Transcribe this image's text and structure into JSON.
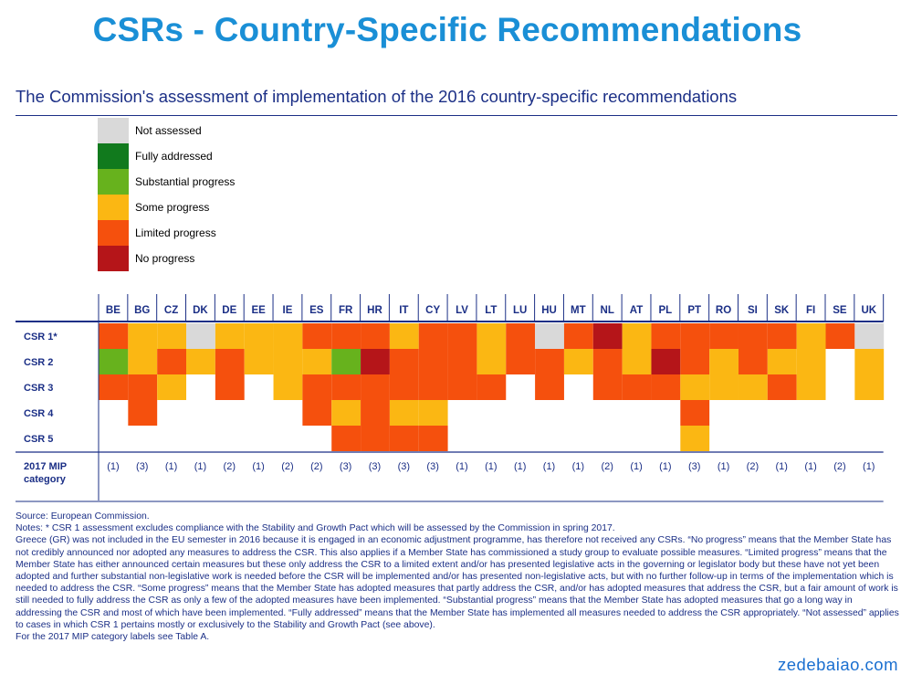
{
  "header": {
    "title": "CSRs - Country-Specific Recommendations",
    "subtitle": "The Commission's assessment of implementation of the 2016 country-specific recommendations"
  },
  "legend": [
    {
      "key": "na",
      "label": "Not assessed",
      "color": "#d9d9d9"
    },
    {
      "key": "fa",
      "label": "Fully addressed",
      "color": "#117a1d"
    },
    {
      "key": "sp",
      "label": "Substantial progress",
      "color": "#67b21d"
    },
    {
      "key": "so",
      "label": "Some progress",
      "color": "#fbb713"
    },
    {
      "key": "li",
      "label": "Limited progress",
      "color": "#f5500d"
    },
    {
      "key": "np",
      "label": "No progress",
      "color": "#b51519"
    }
  ],
  "chart_data": {
    "type": "heatmap",
    "title": "The Commission's assessment of implementation of the 2016 country-specific recommendations",
    "columns": [
      "BE",
      "BG",
      "CZ",
      "DK",
      "DE",
      "EE",
      "IE",
      "ES",
      "FR",
      "HR",
      "IT",
      "CY",
      "LV",
      "LT",
      "LU",
      "HU",
      "MT",
      "NL",
      "AT",
      "PL",
      "PT",
      "RO",
      "SI",
      "SK",
      "FI",
      "SE",
      "UK"
    ],
    "rows": [
      "CSR 1*",
      "CSR 2",
      "CSR 3",
      "CSR 4",
      "CSR 5"
    ],
    "categories": {
      "na": "Not assessed",
      "fa": "Fully addressed",
      "sp": "Substantial progress",
      "so": "Some progress",
      "li": "Limited progress",
      "np": "No progress"
    },
    "values": [
      [
        "li",
        "so",
        "so",
        "na",
        "so",
        "so",
        "so",
        "li",
        "li",
        "li",
        "so",
        "li",
        "li",
        "so",
        "li",
        "na",
        "li",
        "np",
        "so",
        "li",
        "li",
        "li",
        "li",
        "li",
        "so",
        "li",
        "na"
      ],
      [
        "sp",
        "so",
        "li",
        "so",
        "li",
        "so",
        "so",
        "so",
        "sp",
        "np",
        "li",
        "li",
        "li",
        "so",
        "li",
        "li",
        "so",
        "li",
        "so",
        "np",
        "li",
        "so",
        "li",
        "so",
        "so",
        "",
        "so"
      ],
      [
        "li",
        "li",
        "so",
        "",
        "li",
        "",
        "so",
        "li",
        "li",
        "li",
        "li",
        "li",
        "li",
        "li",
        "",
        "li",
        "",
        "li",
        "li",
        "li",
        "so",
        "so",
        "so",
        "li",
        "so",
        "",
        "so"
      ],
      [
        "",
        "li",
        "",
        "",
        "",
        "",
        "",
        "li",
        "so",
        "li",
        "so",
        "so",
        "",
        "",
        "",
        "",
        "",
        "",
        "",
        "",
        "li",
        "",
        "",
        "",
        "",
        "",
        ""
      ],
      [
        "",
        "",
        "",
        "",
        "",
        "",
        "",
        "",
        "li",
        "li",
        "li",
        "li",
        "",
        "",
        "",
        "",
        "",
        "",
        "",
        "",
        "so",
        "",
        "",
        "",
        "",
        "",
        ""
      ]
    ],
    "footer_label_line1": "2017 MIP",
    "footer_label_line2": "category",
    "mip_category": [
      "(1)",
      "(3)",
      "(1)",
      "(1)",
      "(2)",
      "(1)",
      "(2)",
      "(2)",
      "(3)",
      "(3)",
      "(3)",
      "(3)",
      "(1)",
      "(1)",
      "(1)",
      "(1)",
      "(1)",
      "(2)",
      "(1)",
      "(1)",
      "(3)",
      "(1)",
      "(2)",
      "(1)",
      "(1)",
      "(2)",
      "(1)"
    ]
  },
  "notes": {
    "source": "Source: European Commission.",
    "notes_line": "Notes: * CSR 1 assessment excludes compliance with the Stability and Growth Pact which will be assessed by the Commission in spring 2017.",
    "body": "Greece (GR) was not included in the EU semester in 2016 because it is engaged in an economic adjustment programme, has therefore not received any CSRs. “No progress” means that the Member State has not credibly announced nor adopted any measures to address the CSR. This also applies if a Member State has commissioned a study group to evaluate possible measures. “Limited progress” means that the Member State has either announced certain measures but these only address the CSR to a limited extent and/or has presented legislative acts in the governing or legislator body but these have not yet been adopted and further substantial non-legislative work is needed before the CSR will be implemented and/or has presented non-legislative acts, but with no further follow-up in terms of the implementation which is needed to address the CSR. “Some progress” means that the Member State has adopted measures that partly address the CSR, and/or has adopted measures that address the CSR, but a fair amount of work is still needed to fully address the CSR as only a few of the adopted measures have been implemented. “Substantial progress” means that the Member State has adopted measures that go a long way in addressing the CSR and most of which have been implemented. “Fully addressed” means that the Member State has implemented all measures needed to address the CSR appropriately. “Not assessed” applies to cases in which CSR 1 pertains mostly or exclusively to the Stability and Growth Pact (see above).",
    "mip_note": "For the 2017 MIP category labels see Table A."
  },
  "watermark": "zedebaiao.com",
  "colors": {
    "title": "#1a8fd6",
    "text_navy": "#1b2f86",
    "label_navy": "#1b2f86"
  }
}
